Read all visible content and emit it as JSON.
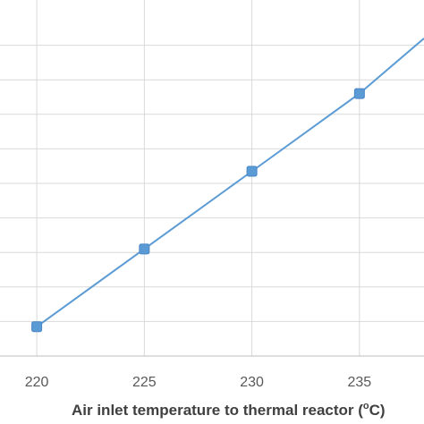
{
  "chart_data": {
    "type": "line",
    "title": "",
    "xlabel_prefix": "Air inlet temperature to thermal reactor (",
    "xlabel_sup": "o",
    "xlabel_suffix": "C)",
    "ylabel": "",
    "x_ticks": [
      "220",
      "225",
      "230",
      "235"
    ],
    "xlim": [
      218.0,
      238.0
    ],
    "ylim": [
      0.0,
      10.0
    ],
    "grid": "vertical and horizontal",
    "series": [
      {
        "color": "#5b9bd5",
        "x": [
          220,
          225,
          230,
          235,
          238
        ],
        "y": [
          0.85,
          3.1,
          5.35,
          7.6,
          9.2
        ],
        "markers": [
          true,
          true,
          true,
          true,
          false
        ]
      }
    ]
  }
}
